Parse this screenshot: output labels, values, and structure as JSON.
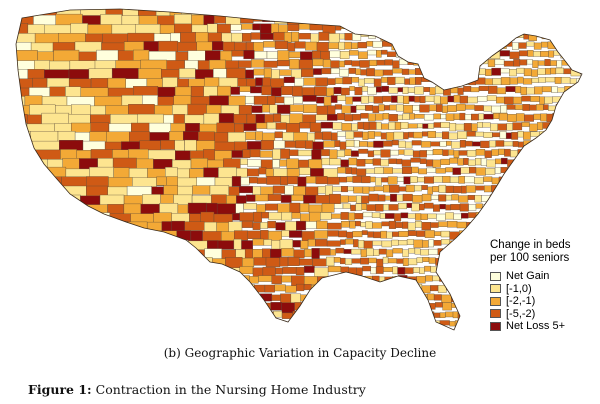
{
  "map": {
    "legend": {
      "title_line1": "Change in beds",
      "title_line2": "per 100 seniors",
      "items": [
        {
          "label": "Net Gain",
          "color": "#ffffdd"
        },
        {
          "label": "[-1,0)",
          "color": "#fde590"
        },
        {
          "label": "[-2,-1)",
          "color": "#f3a936"
        },
        {
          "label": "[-5,-2)",
          "color": "#cf5a15"
        },
        {
          "label": "Net Loss 5+",
          "color": "#8c0c0c"
        }
      ]
    },
    "region_colors": {
      "background": "#ffffff",
      "border": "#5a4a3a"
    }
  },
  "caption": {
    "subfigure": "(b) Geographic Variation in Capacity Decline",
    "figure_label": "Figure 1:",
    "figure_title": "Contraction in the Nursing Home Industry"
  }
}
